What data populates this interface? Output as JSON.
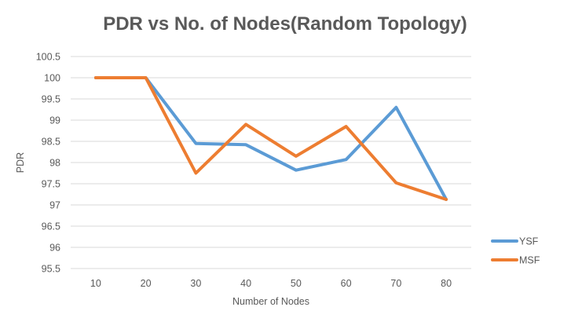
{
  "chart_data": {
    "type": "line",
    "title": "PDR vs No. of Nodes(Random Topology)",
    "xlabel": "Number of Nodes",
    "ylabel": "PDR",
    "categories": [
      "10",
      "20",
      "30",
      "40",
      "50",
      "60",
      "70",
      "80"
    ],
    "ylim": [
      95.5,
      100.5
    ],
    "yticks": [
      "95.5",
      "96",
      "96.5",
      "97",
      "97.5",
      "98",
      "98.5",
      "99",
      "99.5",
      "100",
      "100.5"
    ],
    "grid": true,
    "legend_position": "right",
    "series": [
      {
        "name": "YSF",
        "color": "#5b9bd5",
        "values": [
          100,
          100,
          98.45,
          98.42,
          97.82,
          98.07,
          99.3,
          97.13
        ]
      },
      {
        "name": "MSF",
        "color": "#ed7d31",
        "values": [
          100,
          100,
          97.75,
          98.9,
          98.15,
          98.85,
          97.52,
          97.13
        ]
      }
    ]
  }
}
